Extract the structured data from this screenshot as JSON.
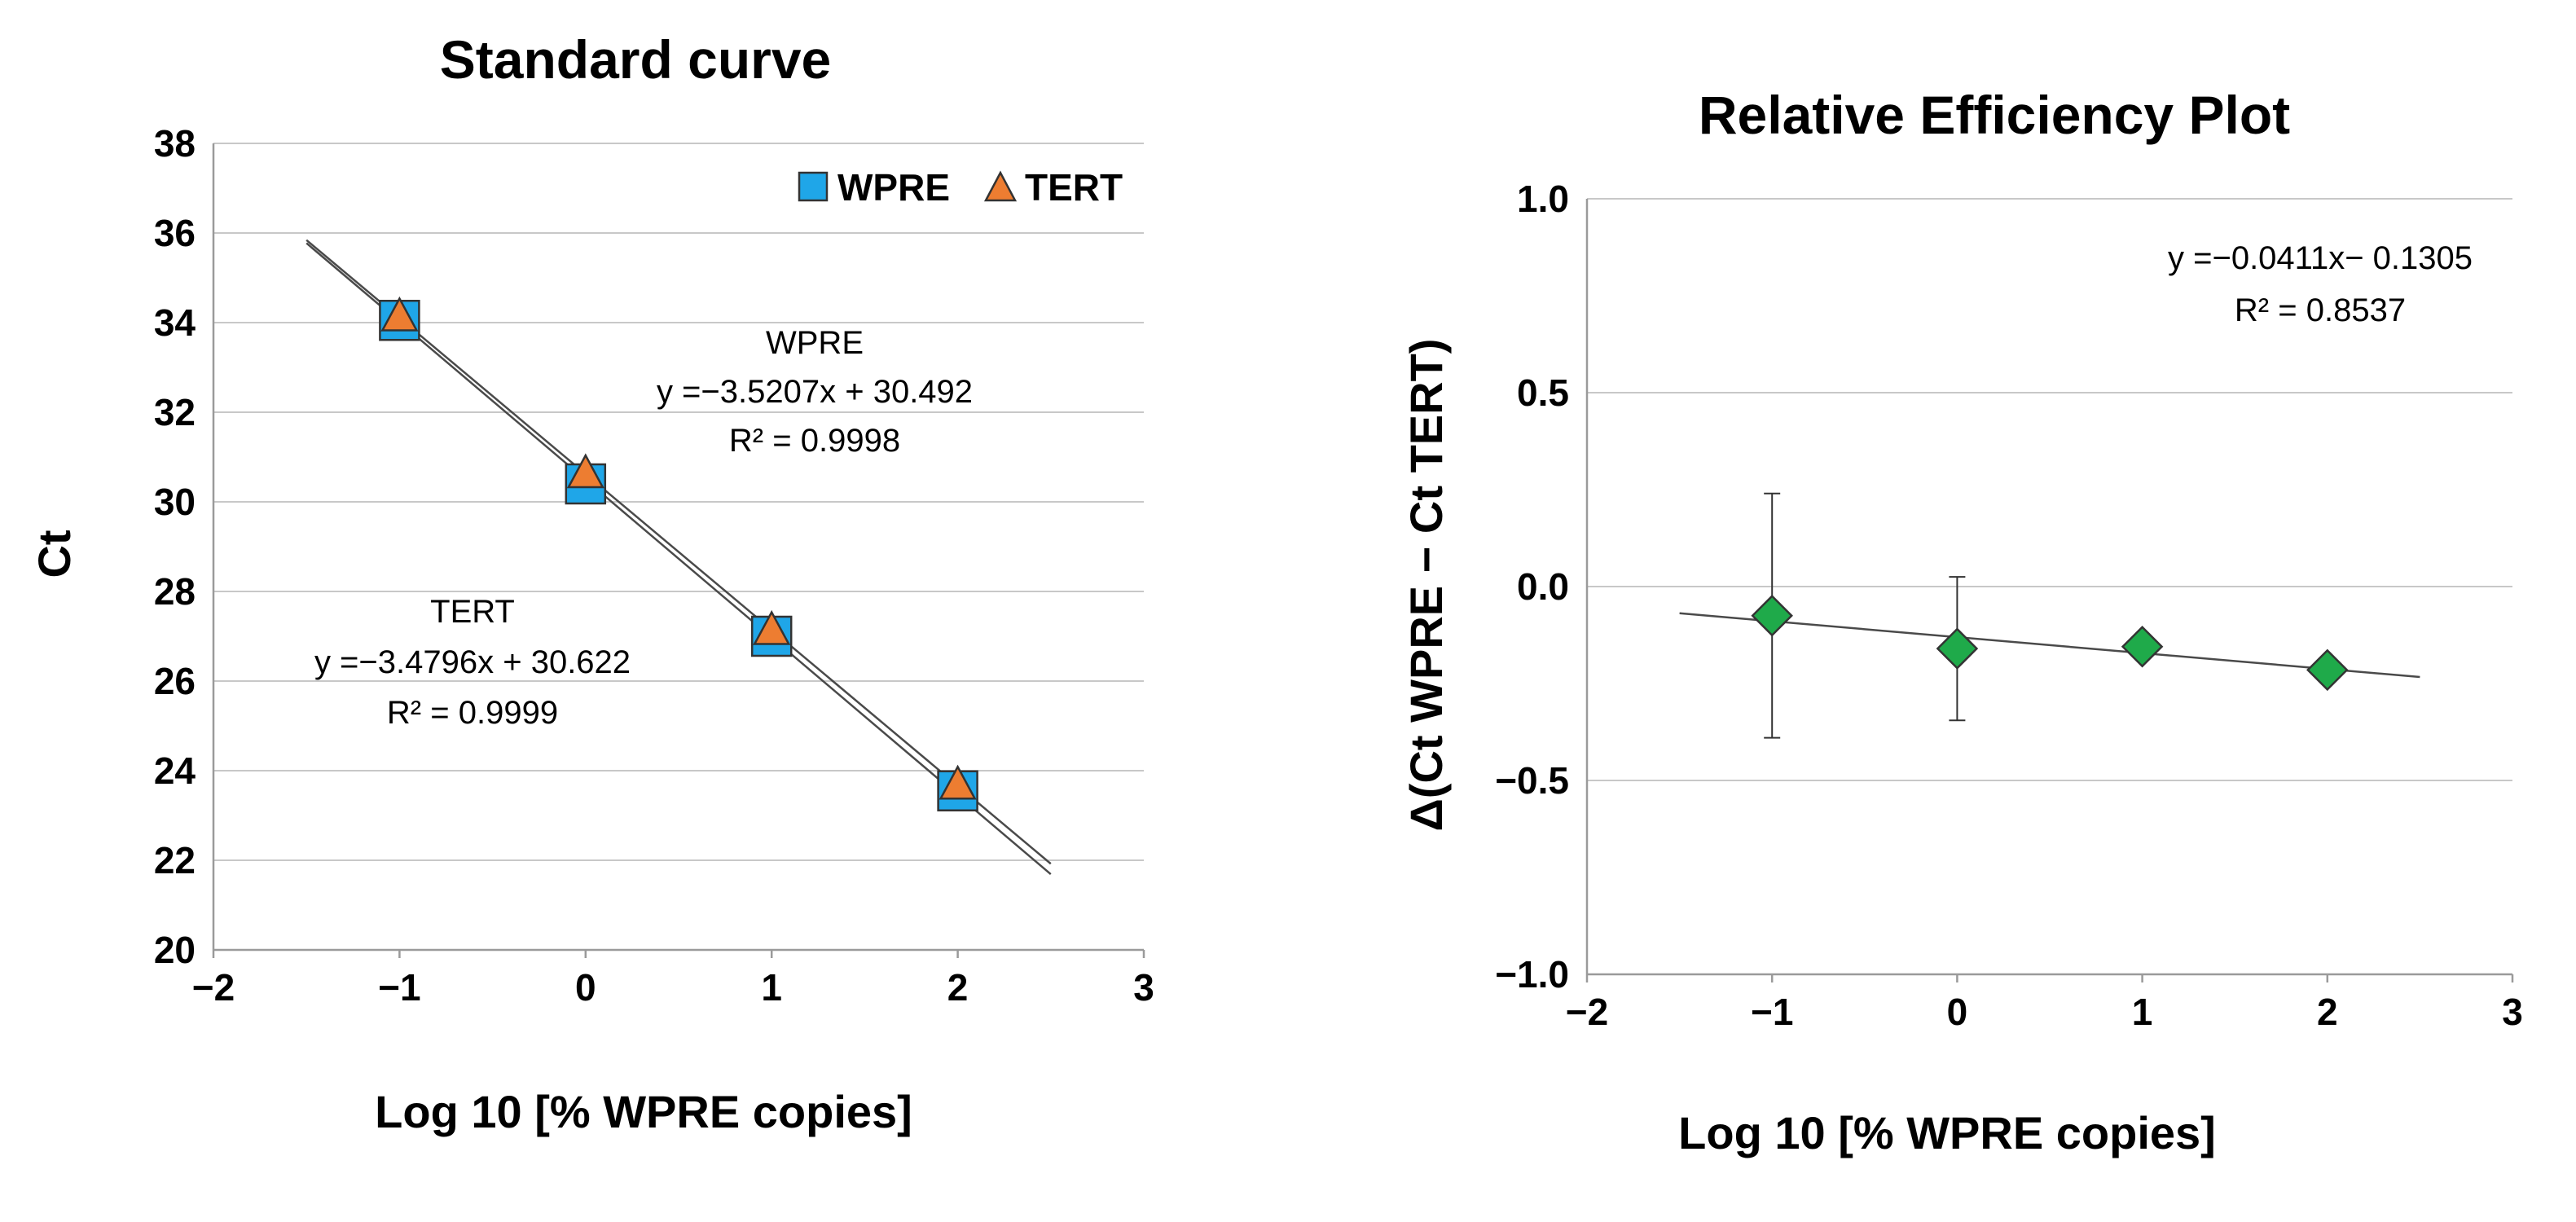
{
  "chart_data": [
    {
      "type": "scatter",
      "title": "Standard curve",
      "xlabel": "Log 10 [% WPRE copies]",
      "ylabel": "Ct",
      "xlim": [
        -2,
        3
      ],
      "ylim": [
        20,
        38
      ],
      "x_ticks": [
        "−2",
        "−1",
        "0",
        "1",
        "2",
        "3"
      ],
      "y_ticks": [
        "20",
        "22",
        "24",
        "26",
        "28",
        "30",
        "32",
        "34",
        "36",
        "38"
      ],
      "grid": "horizontal",
      "legend_position": "top-right",
      "series": [
        {
          "name": "WPRE",
          "marker": "square",
          "color": "#1fa6e8",
          "x": [
            -1,
            0,
            1,
            2
          ],
          "y": [
            34.05,
            30.4,
            27.0,
            23.55
          ],
          "trendline": {
            "slope": -3.5207,
            "intercept": 30.492,
            "x_range": [
              -1.5,
              2.5
            ]
          },
          "annotation": {
            "lines": [
              "WPRE",
              "y =−3.5207x + 30.492",
              "R² = 0.9998"
            ]
          }
        },
        {
          "name": "TERT",
          "marker": "triangle",
          "color": "#ed7d31",
          "x": [
            -1,
            0,
            1,
            2
          ],
          "y": [
            34.1,
            30.6,
            27.1,
            23.65
          ],
          "trendline": {
            "slope": -3.4796,
            "intercept": 30.622,
            "x_range": [
              -1.5,
              2.5
            ]
          },
          "annotation": {
            "lines": [
              "TERT",
              "y =−3.4796x + 30.622",
              "R² = 0.9999"
            ]
          }
        }
      ]
    },
    {
      "type": "scatter",
      "title": "Relative Efficiency Plot",
      "xlabel": "Log 10 [% WPRE copies]",
      "ylabel": "Δ(Ct WPRE − Ct TERT)",
      "xlim": [
        -2,
        3
      ],
      "ylim": [
        -1.0,
        1.0
      ],
      "x_ticks": [
        "−2",
        "−1",
        "0",
        "1",
        "2",
        "3"
      ],
      "y_ticks": [
        "−1.0",
        "−0.5",
        "0.0",
        "0.5",
        "1.0"
      ],
      "grid": "horizontal",
      "series": [
        {
          "marker": "diamond",
          "color": "#1faa4a",
          "x": [
            -1,
            0,
            1,
            2
          ],
          "y": [
            -0.075,
            -0.16,
            -0.155,
            -0.215
          ],
          "error": [
            0.315,
            0.185,
            0,
            0
          ],
          "trendline": {
            "slope": -0.0411,
            "intercept": -0.1305,
            "x_range": [
              -1.5,
              2.5
            ]
          },
          "annotation": {
            "lines": [
              "y =−0.0411x− 0.1305",
              "R² = 0.8537"
            ]
          }
        }
      ]
    }
  ]
}
